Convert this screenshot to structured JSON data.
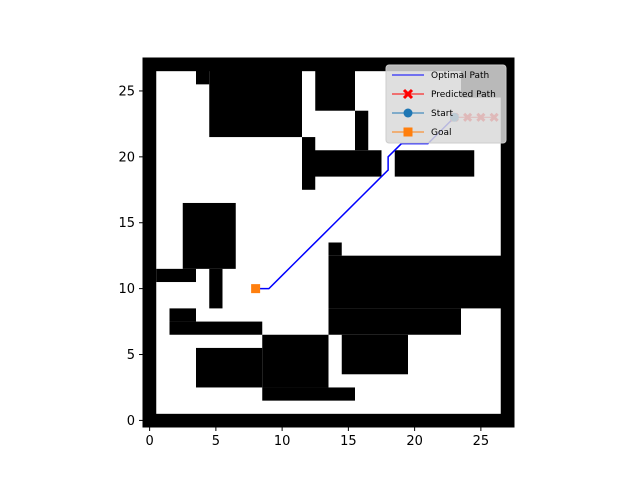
{
  "chart_data": {
    "type": "line",
    "title": "",
    "xlabel": "",
    "ylabel": "",
    "grid_size": [
      28,
      28
    ],
    "xlim": [
      -0.5,
      27.5
    ],
    "ylim": [
      27.5,
      -0.5
    ],
    "y_inverted": true,
    "xticks": [
      0,
      5,
      10,
      15,
      20,
      25
    ],
    "yticks": [
      0,
      5,
      10,
      15,
      20,
      25
    ],
    "obstacle_rects": [
      {
        "c0": 0,
        "c1": 0,
        "r0": 0,
        "r1": 27
      },
      {
        "c0": 27,
        "c1": 27,
        "r0": 0,
        "r1": 27
      },
      {
        "c0": 0,
        "c1": 27,
        "r0": 0,
        "r1": 0
      },
      {
        "c0": 0,
        "c1": 27,
        "r0": 27,
        "r1": 27
      },
      {
        "c0": 9,
        "c1": 15,
        "r0": 2,
        "r1": 2
      },
      {
        "c0": 9,
        "c1": 13,
        "r0": 3,
        "r1": 6
      },
      {
        "c0": 4,
        "c1": 8,
        "r0": 3,
        "r1": 5
      },
      {
        "c0": 15,
        "c1": 19,
        "r0": 4,
        "r1": 6
      },
      {
        "c0": 14,
        "c1": 23,
        "r0": 7,
        "r1": 8
      },
      {
        "c0": 2,
        "c1": 8,
        "r0": 7,
        "r1": 7
      },
      {
        "c0": 2,
        "c1": 3,
        "r0": 8,
        "r1": 8
      },
      {
        "c0": 14,
        "c1": 27,
        "r0": 9,
        "r1": 12
      },
      {
        "c0": 14,
        "c1": 14,
        "r0": 13,
        "r1": 13
      },
      {
        "c0": 5,
        "c1": 5,
        "r0": 9,
        "r1": 11
      },
      {
        "c0": 1,
        "c1": 3,
        "r0": 11,
        "r1": 11
      },
      {
        "c0": 3,
        "c1": 6,
        "r0": 12,
        "r1": 16
      },
      {
        "c0": 12,
        "c1": 12,
        "r0": 18,
        "r1": 21
      },
      {
        "c0": 12,
        "c1": 17,
        "r0": 19,
        "r1": 20
      },
      {
        "c0": 19,
        "c1": 24,
        "r0": 19,
        "r1": 20
      },
      {
        "c0": 16,
        "c1": 16,
        "r0": 21,
        "r1": 23
      },
      {
        "c0": 5,
        "c1": 11,
        "r0": 22,
        "r1": 27
      },
      {
        "c0": 4,
        "c1": 4,
        "r0": 26,
        "r1": 27
      },
      {
        "c0": 13,
        "c1": 15,
        "r0": 24,
        "r1": 27
      },
      {
        "c0": 24,
        "c1": 27,
        "r0": 25,
        "r1": 27
      }
    ],
    "series": [
      {
        "name": "Optimal Path",
        "color": "#0000ff",
        "marker": "none",
        "points": [
          [
            8,
            10
          ],
          [
            9,
            10
          ],
          [
            10,
            11
          ],
          [
            11,
            12
          ],
          [
            12,
            13
          ],
          [
            13,
            14
          ],
          [
            14,
            15
          ],
          [
            15,
            16
          ],
          [
            16,
            17
          ],
          [
            17,
            18
          ],
          [
            18,
            19
          ],
          [
            18,
            20
          ],
          [
            19,
            21
          ],
          [
            20,
            21
          ],
          [
            21,
            21
          ],
          [
            22,
            22
          ],
          [
            23,
            23
          ]
        ]
      },
      {
        "name": "Predicted Path",
        "color": "#ff0000",
        "marker": "X",
        "points": [
          [
            23,
            23
          ],
          [
            24,
            23
          ],
          [
            25,
            23
          ],
          [
            26,
            23
          ]
        ]
      },
      {
        "name": "Start",
        "color": "#1f77b4",
        "marker": "circle",
        "points": [
          [
            23,
            23
          ]
        ]
      },
      {
        "name": "Goal",
        "color": "#ff7f0e",
        "marker": "square",
        "points": [
          [
            8,
            10
          ]
        ]
      }
    ],
    "legend": {
      "position": "top-right",
      "entries": [
        "Optimal Path",
        "Predicted Path",
        "Start",
        "Goal"
      ]
    }
  }
}
